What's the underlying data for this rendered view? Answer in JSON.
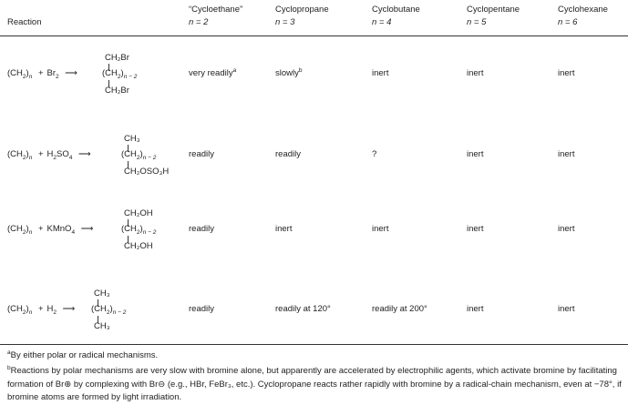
{
  "header": {
    "reaction": "Reaction",
    "columns": [
      {
        "name": "“Cycloethane”",
        "n": "n = 2"
      },
      {
        "name": "Cyclopropane",
        "n": "n = 3"
      },
      {
        "name": "Cyclobutane",
        "n": "n = 4"
      },
      {
        "name": "Cyclopentane",
        "n": "n = 5"
      },
      {
        "name": "Cyclohexane",
        "n": "n = 6"
      }
    ]
  },
  "rows": [
    {
      "reactant": "Br",
      "reactant_sub": "2",
      "top": "CH₂Br",
      "bottom": "CH₂Br",
      "values": [
        "very readily",
        "slowly",
        "inert",
        "inert",
        "inert"
      ],
      "marks": [
        "a",
        "b",
        "",
        "",
        ""
      ]
    },
    {
      "reactant": "H",
      "reactant_sub": "2",
      "reactant_rest": "SO",
      "reactant_sub2": "4",
      "top": "CH₃",
      "bottom": "CH₂OSO₃H",
      "values": [
        "readily",
        "readily",
        "?",
        "inert",
        "inert"
      ],
      "marks": [
        "",
        "",
        "",
        "",
        ""
      ]
    },
    {
      "reactant": "KMnO",
      "reactant_sub": "4",
      "top": "CH₂OH",
      "bottom": "CH₂OH",
      "values": [
        "readily",
        "inert",
        "inert",
        "inert",
        "inert"
      ],
      "marks": [
        "",
        "",
        "",
        "",
        ""
      ]
    },
    {
      "reactant": "H",
      "reactant_sub": "2",
      "top": "CH₃",
      "bottom": "CH₃",
      "values": [
        "readily",
        "readily at 120°",
        "readily at 200°",
        "inert",
        "inert"
      ],
      "marks": [
        "",
        "",
        "",
        "",
        ""
      ]
    }
  ],
  "formula": {
    "left": "(CH",
    "left_sub": "2",
    "left_n": "n",
    "plus": "+",
    "arrow": "⟶",
    "mid": "(CH",
    "mid_sub": "2",
    "mid_n": "n − 2"
  },
  "footnotes": [
    {
      "mark": "a",
      "text": "By either polar or radical mechanisms."
    },
    {
      "mark": "b",
      "text": "Reactions by polar mechanisms are very slow with bromine alone, but apparently are accelerated by electrophilic agents, which activate bromine by facilitating formation of Br⊕ by complexing with Br⊖ (e.g., HBr, FeBr₃, etc.). Cyclopropane reacts rather rapidly with bromine by a radical-chain mechanism, even at −78°, if bromine atoms are formed by light irradiation."
    }
  ]
}
